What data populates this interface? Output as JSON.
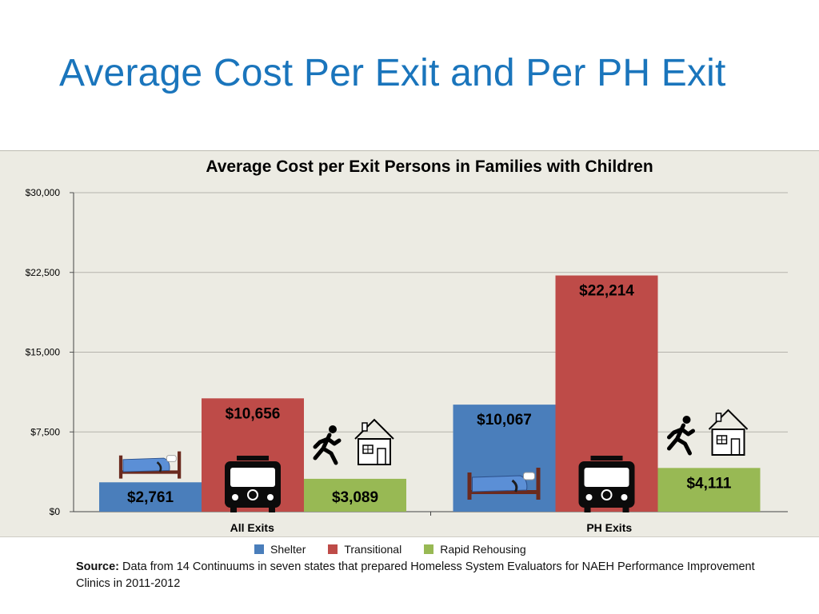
{
  "slide": {
    "title": "Average Cost Per Exit and Per PH Exit"
  },
  "colors": {
    "panel_background": "#ecebe3",
    "title": "#1a75bc",
    "grid": "#b5b3ac"
  },
  "chart_data": {
    "type": "bar",
    "title": "Average Cost per Exit Persons in  Families with Children",
    "xlabel": "",
    "ylabel": "",
    "categories": [
      "All Exits",
      "PH Exits"
    ],
    "series": [
      {
        "name": "Shelter",
        "color": "#4a7ebb",
        "icon": "bed-icon",
        "values": [
          2761,
          10067
        ],
        "labels": [
          "$2,761",
          "$10,067"
        ]
      },
      {
        "name": "Transitional",
        "color": "#be4b48",
        "icon": "bus-icon",
        "values": [
          10656,
          22214
        ],
        "labels": [
          "$10,656",
          "$22,214"
        ]
      },
      {
        "name": "Rapid Rehousing",
        "color": "#98b954",
        "icon": "running-to-house-icon",
        "values": [
          3089,
          4111
        ],
        "labels": [
          "$3,089",
          "$4,111"
        ]
      }
    ],
    "ylim": [
      0,
      30000
    ],
    "yticks": [
      0,
      7500,
      15000,
      22500,
      30000
    ],
    "ytick_labels": [
      "$0",
      "$7,500",
      "$15,000",
      "$22,500",
      "$30,000"
    ],
    "grid": true,
    "legend_position": "bottom"
  },
  "source": {
    "label": "Source:",
    "text": "Data   from 14 Continuums in seven states that prepared Homeless System Evaluators for NAEH Performance Improvement  Clinics in 2011-2012"
  }
}
